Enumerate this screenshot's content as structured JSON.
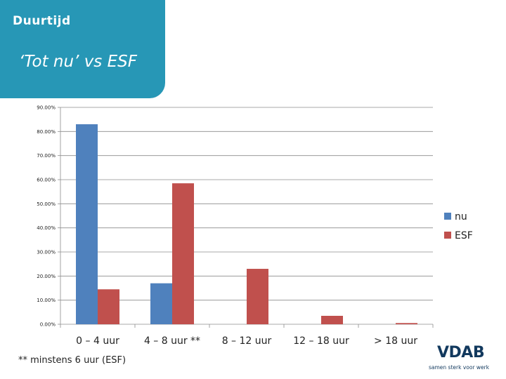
{
  "header": {
    "title": "Duurtijd",
    "subtitle": "‘Tot nu’ vs ESF"
  },
  "footnote": "** minstens 6 uur (ESF)",
  "logo": {
    "word": "VDAB",
    "tagline": "samen sterk voor werk"
  },
  "colors": {
    "header_bg": "#2797b6",
    "series_nu": "#4f81bd",
    "series_esf": "#c0504d"
  },
  "chart_data": {
    "type": "bar",
    "title": "",
    "xlabel": "",
    "ylabel": "",
    "ylim": [
      0,
      0.9
    ],
    "yticks": [
      0,
      0.1,
      0.2,
      0.3,
      0.4,
      0.5,
      0.6,
      0.7,
      0.8,
      0.9
    ],
    "ytick_labels": [
      "0.00%",
      "10.00%",
      "20.00%",
      "30.00%",
      "40.00%",
      "50.00%",
      "60.00%",
      "70.00%",
      "80.00%",
      "90.00%"
    ],
    "grid": true,
    "legend": "right",
    "categories": [
      "0 – 4 uur",
      "4 – 8 uur **",
      "8 – 12 uur",
      "12 – 18 uur",
      "> 18 uur"
    ],
    "series": [
      {
        "name": "nu",
        "color": "#4f81bd",
        "values": [
          0.83,
          0.17,
          0.0,
          0.0,
          0.0
        ]
      },
      {
        "name": "ESF",
        "color": "#c0504d",
        "values": [
          0.145,
          0.585,
          0.23,
          0.035,
          0.005
        ]
      }
    ]
  }
}
